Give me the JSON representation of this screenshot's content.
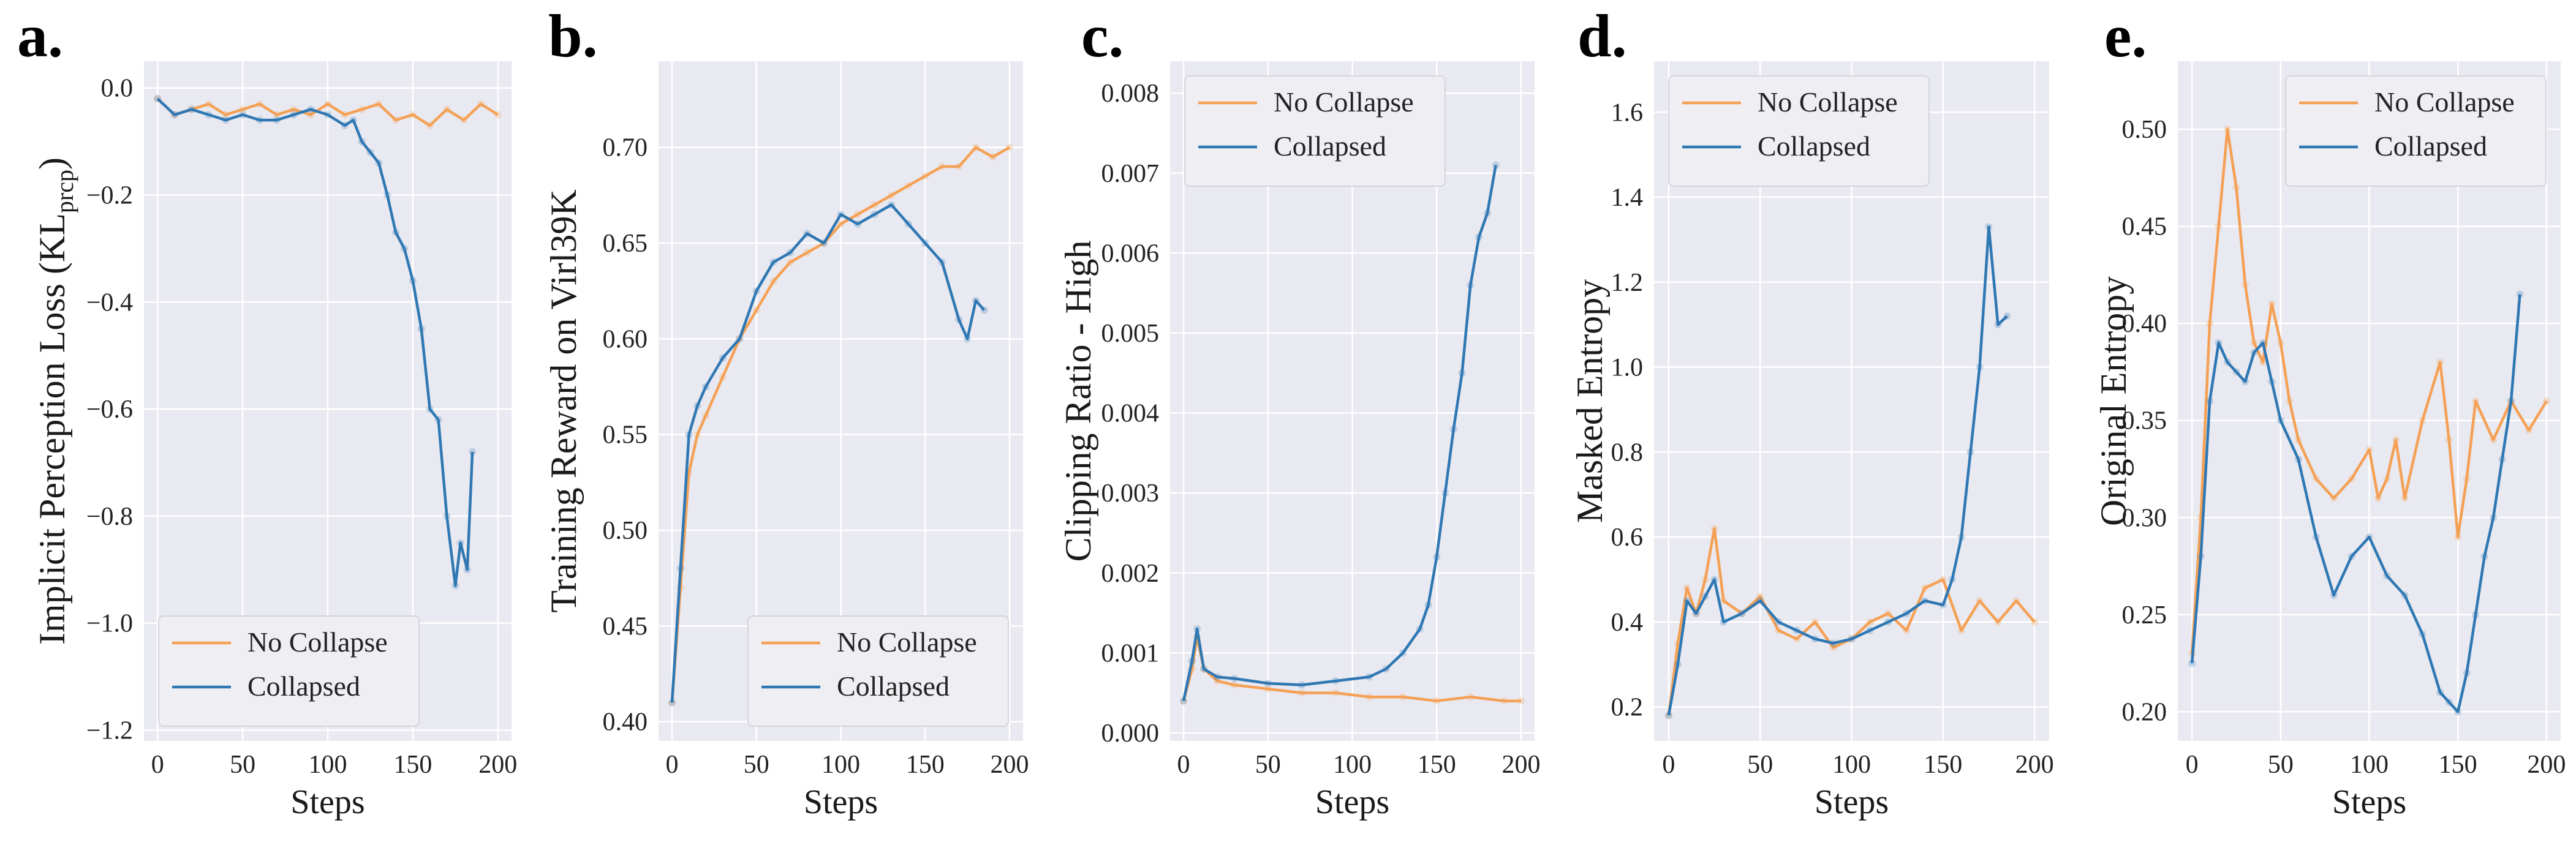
{
  "colors": {
    "no_collapse": "#F4A155",
    "collapsed": "#2F78B3",
    "plot_bg": "#E9E9F1",
    "grid": "#FFFFFF"
  },
  "chart_data": [
    {
      "type": "line",
      "panel": "a.",
      "xlabel": "Steps",
      "ylabel": "Implicit Perception Loss (KL",
      "ylabel_sub": "prcp",
      "ylabel_end": ")",
      "xlim": [
        -8,
        208
      ],
      "ylim": [
        -1.22,
        0.05
      ],
      "xticks": [
        0,
        50,
        100,
        150,
        200
      ],
      "yticks": [
        0.0,
        -0.2,
        -0.4,
        -0.6,
        -0.8,
        -1.0,
        -1.2
      ],
      "ytick_labels": [
        "0.0",
        "−0.2",
        "−0.4",
        "−0.6",
        "−0.8",
        "−1.0",
        "−1.2"
      ],
      "legend_loc": "lower-left",
      "series": [
        {
          "name": "No Collapse",
          "color_key": "no_collapse",
          "x": [
            0,
            10,
            20,
            30,
            40,
            50,
            60,
            70,
            80,
            90,
            100,
            110,
            120,
            130,
            140,
            150,
            160,
            170,
            180,
            190,
            200
          ],
          "y": [
            -0.02,
            -0.05,
            -0.04,
            -0.03,
            -0.05,
            -0.04,
            -0.03,
            -0.05,
            -0.04,
            -0.05,
            -0.03,
            -0.05,
            -0.04,
            -0.03,
            -0.06,
            -0.05,
            -0.07,
            -0.04,
            -0.06,
            -0.03,
            -0.05
          ]
        },
        {
          "name": "Collapsed",
          "color_key": "collapsed",
          "x": [
            0,
            10,
            20,
            30,
            40,
            50,
            60,
            70,
            80,
            90,
            100,
            110,
            115,
            120,
            125,
            130,
            135,
            140,
            145,
            150,
            155,
            160,
            165,
            170,
            175,
            178,
            182,
            185
          ],
          "y": [
            -0.02,
            -0.05,
            -0.04,
            -0.05,
            -0.06,
            -0.05,
            -0.06,
            -0.06,
            -0.05,
            -0.04,
            -0.05,
            -0.07,
            -0.06,
            -0.1,
            -0.12,
            -0.14,
            -0.2,
            -0.27,
            -0.3,
            -0.36,
            -0.45,
            -0.6,
            -0.62,
            -0.8,
            -0.93,
            -0.85,
            -0.9,
            -0.68
          ]
        }
      ]
    },
    {
      "type": "line",
      "panel": "b.",
      "xlabel": "Steps",
      "ylabel": "Training Reward on Virl39K",
      "xlim": [
        -8,
        208
      ],
      "ylim": [
        0.39,
        0.745
      ],
      "xticks": [
        0,
        50,
        100,
        150,
        200
      ],
      "yticks": [
        0.4,
        0.45,
        0.5,
        0.55,
        0.6,
        0.65,
        0.7
      ],
      "ytick_labels": [
        "0.40",
        "0.45",
        "0.50",
        "0.55",
        "0.60",
        "0.65",
        "0.70"
      ],
      "legend_loc": "lower-right",
      "series": [
        {
          "name": "No Collapse",
          "color_key": "no_collapse",
          "x": [
            0,
            5,
            10,
            15,
            20,
            30,
            40,
            50,
            60,
            70,
            80,
            90,
            100,
            110,
            120,
            130,
            140,
            150,
            160,
            170,
            180,
            190,
            200
          ],
          "y": [
            0.41,
            0.47,
            0.53,
            0.55,
            0.56,
            0.58,
            0.6,
            0.615,
            0.63,
            0.64,
            0.645,
            0.65,
            0.66,
            0.665,
            0.67,
            0.675,
            0.68,
            0.685,
            0.69,
            0.69,
            0.7,
            0.695,
            0.7
          ]
        },
        {
          "name": "Collapsed",
          "color_key": "collapsed",
          "x": [
            0,
            5,
            10,
            15,
            20,
            30,
            40,
            50,
            60,
            70,
            80,
            90,
            100,
            110,
            120,
            130,
            140,
            150,
            160,
            170,
            175,
            180,
            185
          ],
          "y": [
            0.41,
            0.48,
            0.55,
            0.565,
            0.575,
            0.59,
            0.6,
            0.625,
            0.64,
            0.645,
            0.655,
            0.65,
            0.665,
            0.66,
            0.665,
            0.67,
            0.66,
            0.65,
            0.64,
            0.61,
            0.6,
            0.62,
            0.615
          ]
        }
      ]
    },
    {
      "type": "line",
      "panel": "c.",
      "xlabel": "Steps",
      "ylabel": "Clipping Ratio - High",
      "xlim": [
        -8,
        208
      ],
      "ylim": [
        -0.0001,
        0.0084
      ],
      "xticks": [
        0,
        50,
        100,
        150,
        200
      ],
      "yticks": [
        0.0,
        0.001,
        0.002,
        0.003,
        0.004,
        0.005,
        0.006,
        0.007,
        0.008
      ],
      "ytick_labels": [
        "0.000",
        "0.001",
        "0.002",
        "0.003",
        "0.004",
        "0.005",
        "0.006",
        "0.007",
        "0.008"
      ],
      "legend_loc": "upper-left",
      "series": [
        {
          "name": "No Collapse",
          "color_key": "no_collapse",
          "x": [
            0,
            5,
            8,
            12,
            20,
            30,
            50,
            70,
            90,
            110,
            130,
            150,
            170,
            190,
            200
          ],
          "y": [
            0.0004,
            0.0008,
            0.0012,
            0.0008,
            0.00065,
            0.0006,
            0.00055,
            0.0005,
            0.0005,
            0.00045,
            0.00045,
            0.0004,
            0.00045,
            0.0004,
            0.0004
          ]
        },
        {
          "name": "Collapsed",
          "color_key": "collapsed",
          "x": [
            0,
            5,
            8,
            12,
            20,
            30,
            50,
            70,
            90,
            110,
            120,
            130,
            140,
            145,
            150,
            155,
            160,
            165,
            170,
            175,
            180,
            185
          ],
          "y": [
            0.0004,
            0.0009,
            0.0013,
            0.0008,
            0.0007,
            0.00068,
            0.00062,
            0.0006,
            0.00065,
            0.0007,
            0.0008,
            0.001,
            0.0013,
            0.0016,
            0.0022,
            0.003,
            0.0038,
            0.0045,
            0.0056,
            0.0062,
            0.0065,
            0.0071
          ]
        }
      ]
    },
    {
      "type": "line",
      "panel": "d.",
      "xlabel": "Steps",
      "ylabel": "Masked Entropy",
      "xlim": [
        -8,
        208
      ],
      "ylim": [
        0.12,
        1.72
      ],
      "xticks": [
        0,
        50,
        100,
        150,
        200
      ],
      "yticks": [
        0.2,
        0.4,
        0.6,
        0.8,
        1.0,
        1.2,
        1.4,
        1.6
      ],
      "ytick_labels": [
        "0.2",
        "0.4",
        "0.6",
        "0.8",
        "1.0",
        "1.2",
        "1.4",
        "1.6"
      ],
      "legend_loc": "upper-left",
      "series": [
        {
          "name": "No Collapse",
          "color_key": "no_collapse",
          "x": [
            0,
            5,
            10,
            15,
            20,
            25,
            30,
            40,
            50,
            60,
            70,
            80,
            90,
            100,
            110,
            120,
            130,
            140,
            150,
            160,
            170,
            180,
            190,
            200
          ],
          "y": [
            0.18,
            0.35,
            0.48,
            0.42,
            0.5,
            0.62,
            0.45,
            0.42,
            0.46,
            0.38,
            0.36,
            0.4,
            0.34,
            0.36,
            0.4,
            0.42,
            0.38,
            0.48,
            0.5,
            0.38,
            0.45,
            0.4,
            0.45,
            0.4
          ]
        },
        {
          "name": "Collapsed",
          "color_key": "collapsed",
          "x": [
            0,
            5,
            10,
            15,
            20,
            25,
            30,
            40,
            50,
            60,
            70,
            80,
            90,
            100,
            110,
            120,
            130,
            140,
            150,
            155,
            160,
            165,
            170,
            175,
            180,
            185
          ],
          "y": [
            0.18,
            0.3,
            0.45,
            0.42,
            0.46,
            0.5,
            0.4,
            0.42,
            0.45,
            0.4,
            0.38,
            0.36,
            0.35,
            0.36,
            0.38,
            0.4,
            0.42,
            0.45,
            0.44,
            0.5,
            0.6,
            0.8,
            1.0,
            1.33,
            1.1,
            1.12
          ]
        }
      ]
    },
    {
      "type": "line",
      "panel": "e.",
      "xlabel": "Steps",
      "ylabel": "Original Entropy",
      "xlim": [
        -8,
        208
      ],
      "ylim": [
        0.185,
        0.535
      ],
      "xticks": [
        0,
        50,
        100,
        150,
        200
      ],
      "yticks": [
        0.2,
        0.25,
        0.3,
        0.35,
        0.4,
        0.45,
        0.5
      ],
      "ytick_labels": [
        "0.20",
        "0.25",
        "0.30",
        "0.35",
        "0.40",
        "0.45",
        "0.50"
      ],
      "legend_loc": "upper-right",
      "series": [
        {
          "name": "No Collapse",
          "color_key": "no_collapse",
          "x": [
            0,
            5,
            10,
            15,
            20,
            25,
            30,
            35,
            40,
            45,
            50,
            55,
            60,
            70,
            80,
            90,
            100,
            105,
            110,
            115,
            120,
            130,
            140,
            145,
            150,
            155,
            160,
            170,
            180,
            190,
            200
          ],
          "y": [
            0.23,
            0.3,
            0.4,
            0.45,
            0.5,
            0.47,
            0.42,
            0.39,
            0.38,
            0.41,
            0.39,
            0.36,
            0.34,
            0.32,
            0.31,
            0.32,
            0.335,
            0.31,
            0.32,
            0.34,
            0.31,
            0.35,
            0.38,
            0.34,
            0.29,
            0.32,
            0.36,
            0.34,
            0.36,
            0.345,
            0.36
          ]
        },
        {
          "name": "Collapsed",
          "color_key": "collapsed",
          "x": [
            0,
            5,
            10,
            15,
            20,
            25,
            30,
            35,
            40,
            45,
            50,
            60,
            70,
            80,
            90,
            100,
            110,
            120,
            130,
            140,
            145,
            150,
            155,
            160,
            165,
            170,
            175,
            180,
            185
          ],
          "y": [
            0.225,
            0.28,
            0.36,
            0.39,
            0.38,
            0.375,
            0.37,
            0.385,
            0.39,
            0.37,
            0.35,
            0.33,
            0.29,
            0.26,
            0.28,
            0.29,
            0.27,
            0.26,
            0.24,
            0.21,
            0.205,
            0.2,
            0.22,
            0.25,
            0.28,
            0.3,
            0.33,
            0.36,
            0.415
          ]
        }
      ]
    }
  ]
}
